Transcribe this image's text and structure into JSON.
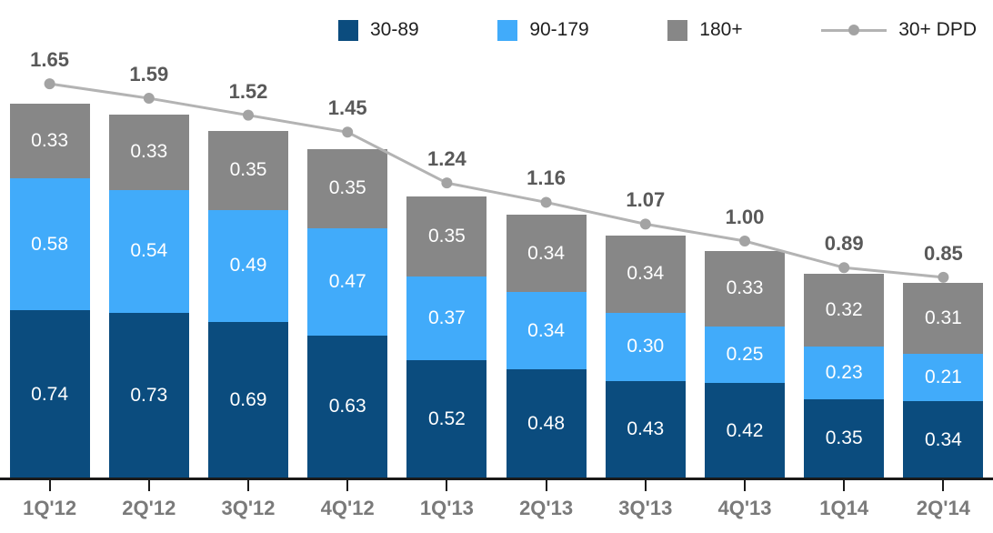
{
  "chart_data": {
    "type": "bar",
    "subtype": "stacked-bar-with-line",
    "title": "",
    "xlabel": "",
    "ylabel": "",
    "grid": false,
    "legend_position": "top",
    "categories": [
      "1Q'12",
      "2Q'12",
      "3Q'12",
      "4Q'12",
      "1Q'13",
      "2Q'13",
      "3Q'13",
      "4Q'13",
      "1Q14",
      "2Q'14"
    ],
    "series": [
      {
        "name": "30-89",
        "color": "#0b4c7e",
        "values": [
          0.74,
          0.73,
          0.69,
          0.63,
          0.52,
          0.48,
          0.43,
          0.42,
          0.35,
          0.34
        ]
      },
      {
        "name": "90-179",
        "color": "#41abfa",
        "values": [
          0.58,
          0.54,
          0.49,
          0.47,
          0.37,
          0.34,
          0.3,
          0.25,
          0.23,
          0.21
        ]
      },
      {
        "name": "180+",
        "color": "#878787",
        "values": [
          0.33,
          0.33,
          0.35,
          0.35,
          0.35,
          0.34,
          0.34,
          0.33,
          0.32,
          0.31
        ]
      }
    ],
    "line_series": {
      "name": "30+ DPD",
      "color": "#b3b3b3",
      "marker_color": "#a3a3a3",
      "values": [
        1.65,
        1.59,
        1.52,
        1.45,
        1.24,
        1.16,
        1.07,
        1.0,
        0.89,
        0.85
      ]
    },
    "value_label_color": "#ffffff",
    "total_label_color": "#595959",
    "axis_label_color": "#7a7a7a",
    "value_decimals": 2
  }
}
